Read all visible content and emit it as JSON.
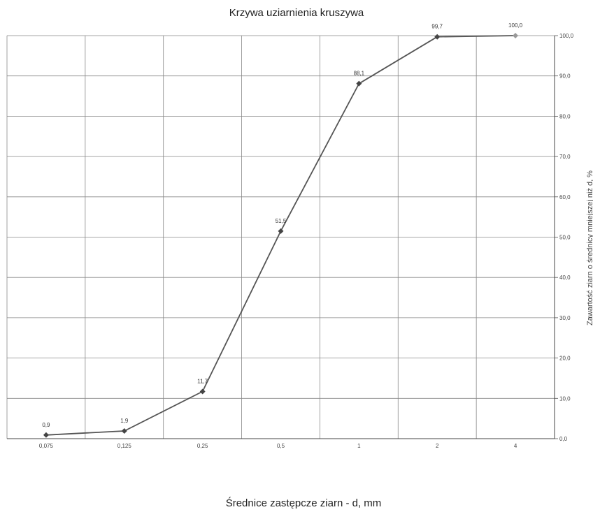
{
  "chart_data": {
    "type": "line",
    "title": "Krzywa uziarnienia kruszywa",
    "xlabel": "Średnice zastępcze ziarn - d, mm",
    "ylabel": "Zawartość ziarn o średnicy mniejszej niż d, %",
    "categories": [
      "0,075",
      "0,125",
      "0,25",
      "0,5",
      "1",
      "2",
      "4"
    ],
    "values": [
      0.9,
      1.9,
      11.7,
      51.5,
      88.1,
      99.7,
      100.0
    ],
    "data_labels": [
      "0,9",
      "1,9",
      "11,7",
      "51,5",
      "88,1",
      "99,7",
      "100,0"
    ],
    "y_ticks": [
      "0,0",
      "10,0",
      "20,0",
      "30,0",
      "40,0",
      "50,0",
      "60,0",
      "70,0",
      "80,0",
      "90,0",
      "100,0"
    ],
    "ylim": [
      0,
      100
    ],
    "grid": true,
    "legend": "none",
    "colors": {
      "line": "#555555",
      "marker": "#444444",
      "grid": "#888888"
    }
  }
}
